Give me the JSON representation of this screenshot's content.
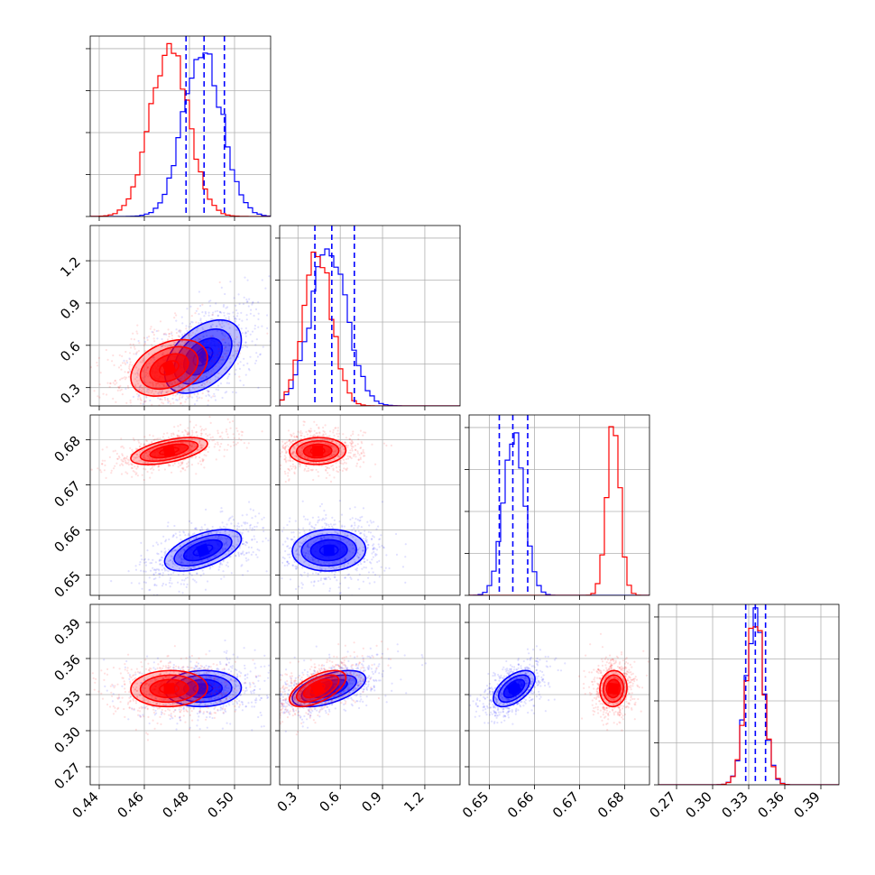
{
  "figure": {
    "type": "corner-plot"
  },
  "colors": {
    "blue": "#0000ff",
    "red": "#ff0000",
    "grid": "#b0b0b0"
  },
  "chart_data": {
    "type": "corner",
    "parameters": [
      {
        "ticks": [
          "0.44",
          "0.46",
          "0.48",
          "0.50"
        ],
        "tick_values": [
          0.44,
          0.46,
          0.48,
          0.5
        ],
        "range": [
          0.436,
          0.516
        ]
      },
      {
        "ticks": [
          "0.3",
          "0.6",
          "0.9",
          "1.2"
        ],
        "tick_values": [
          0.3,
          0.6,
          0.9,
          1.2
        ],
        "range": [
          0.17,
          1.45
        ]
      },
      {
        "ticks": [
          "0.65",
          "0.66",
          "0.67",
          "0.68"
        ],
        "tick_values": [
          0.65,
          0.66,
          0.67,
          0.68
        ],
        "range": [
          0.6455,
          0.6855
        ]
      },
      {
        "ticks": [
          "0.27",
          "0.30",
          "0.33",
          "0.36",
          "0.39"
        ],
        "tick_values": [
          0.27,
          0.3,
          0.33,
          0.36,
          0.39
        ],
        "range": [
          0.255,
          0.405
        ]
      }
    ],
    "series": [
      {
        "color": "#0000ff",
        "mean": [
          0.486,
          0.52,
          0.6555,
          0.335
        ],
        "sd": [
          0.0085,
          0.13,
          0.0023,
          0.0075
        ],
        "quantile_lines": true
      },
      {
        "color": "#ff0000",
        "mean": [
          0.471,
          0.44,
          0.6775,
          0.335
        ],
        "sd": [
          0.0085,
          0.1,
          0.0015,
          0.0075
        ],
        "quantile_lines": false
      }
    ],
    "quantile_lines_parameter": [
      [
        0.4785,
        0.4865,
        0.4955
      ],
      [
        0.42,
        0.54,
        0.7
      ],
      [
        0.6522,
        0.6552,
        0.6585
      ],
      [
        0.3275,
        0.3355,
        0.344
      ]
    ],
    "hist_ylim": [
      [
        0,
        1.08
      ],
      [
        0,
        1.18
      ],
      [
        0,
        1.08
      ],
      [
        0,
        1.08
      ]
    ],
    "correlations": {
      "1-0": [
        0.45,
        0.35
      ],
      "2-0": [
        0.55,
        0.55
      ],
      "2-1": [
        0.05,
        0.05
      ],
      "3-0": [
        0.05,
        0.05
      ],
      "3-1": [
        0.55,
        0.6
      ],
      "3-2": [
        0.55,
        0.05
      ]
    },
    "grid": true,
    "contour_levels_sigma": [
      0.5,
      1.0,
      1.5,
      2.0
    ]
  }
}
